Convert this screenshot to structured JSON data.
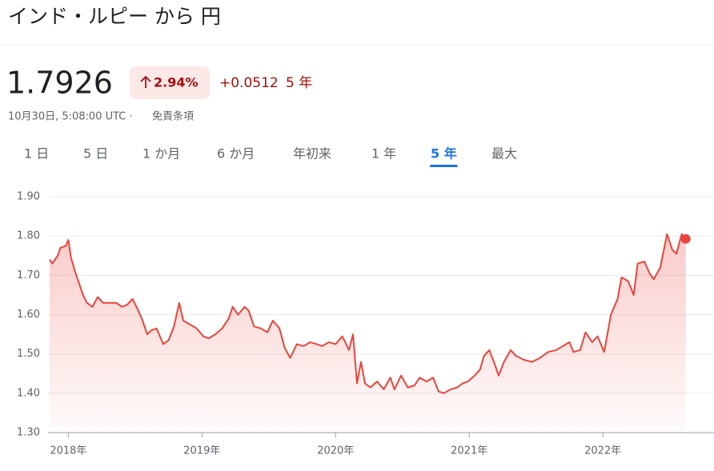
{
  "header": {
    "title": "インド・ルピー から 円"
  },
  "quote": {
    "price": "1.7926",
    "change_percent": "2.94%",
    "change": "+0.0512",
    "period": "5 年",
    "timestamp": "10月30日, 5:08:00 UTC ·",
    "disclaimer": "免責条項"
  },
  "tabs": {
    "items": [
      "1 日",
      "5 日",
      "1 か月",
      "6 か月",
      "年初来",
      "1 年",
      "5 年",
      "最大"
    ],
    "selected": 6
  },
  "chart_data": {
    "type": "line",
    "x": [
      2017.86,
      2017.88,
      2017.92,
      2017.94,
      2017.98,
      2018.0,
      2018.02,
      2018.05,
      2018.08,
      2018.11,
      2018.14,
      2018.18,
      2018.22,
      2018.26,
      2018.31,
      2018.36,
      2018.4,
      2018.44,
      2018.48,
      2018.51,
      2018.55,
      2018.59,
      2018.62,
      2018.66,
      2018.71,
      2018.75,
      2018.79,
      2018.83,
      2018.86,
      2018.91,
      2018.96,
      2019.01,
      2019.05,
      2019.1,
      2019.15,
      2019.2,
      2019.23,
      2019.27,
      2019.32,
      2019.35,
      2019.39,
      2019.44,
      2019.49,
      2019.53,
      2019.58,
      2019.62,
      2019.66,
      2019.71,
      2019.76,
      2019.81,
      2019.86,
      2019.9,
      2019.95,
      2020.0,
      2020.05,
      2020.1,
      2020.13,
      2020.16,
      2020.19,
      2020.22,
      2020.26,
      2020.31,
      2020.36,
      2020.41,
      2020.44,
      2020.49,
      2020.54,
      2020.59,
      2020.63,
      2020.68,
      2020.73,
      2020.77,
      2020.81,
      2020.86,
      2020.91,
      2020.95,
      2020.99,
      2021.04,
      2021.08,
      2021.11,
      2021.15,
      2021.19,
      2021.22,
      2021.26,
      2021.31,
      2021.35,
      2021.41,
      2021.47,
      2021.53,
      2021.59,
      2021.65,
      2021.7,
      2021.75,
      2021.78,
      2021.83,
      2021.87,
      2021.92,
      2021.96,
      2022.01,
      2022.06,
      2022.11,
      2022.14,
      2022.19,
      2022.23,
      2022.26,
      2022.31,
      2022.35,
      2022.38,
      2022.43,
      2022.48,
      2022.52,
      2022.55,
      2022.59,
      2022.62
    ],
    "series": [
      {
        "color": "#e8453c",
        "values": [
          1.74,
          1.73,
          1.75,
          1.77,
          1.775,
          1.79,
          1.745,
          1.71,
          1.68,
          1.65,
          1.63,
          1.62,
          1.645,
          1.63,
          1.63,
          1.63,
          1.62,
          1.625,
          1.64,
          1.62,
          1.59,
          1.55,
          1.56,
          1.565,
          1.525,
          1.535,
          1.57,
          1.63,
          1.585,
          1.575,
          1.565,
          1.545,
          1.54,
          1.55,
          1.565,
          1.59,
          1.62,
          1.6,
          1.62,
          1.61,
          1.57,
          1.565,
          1.555,
          1.585,
          1.565,
          1.515,
          1.49,
          1.525,
          1.52,
          1.53,
          1.525,
          1.52,
          1.53,
          1.525,
          1.545,
          1.51,
          1.55,
          1.425,
          1.48,
          1.425,
          1.415,
          1.43,
          1.41,
          1.44,
          1.41,
          1.445,
          1.415,
          1.42,
          1.44,
          1.43,
          1.44,
          1.405,
          1.4,
          1.41,
          1.415,
          1.425,
          1.43,
          1.445,
          1.46,
          1.495,
          1.51,
          1.475,
          1.445,
          1.48,
          1.51,
          1.495,
          1.485,
          1.48,
          1.49,
          1.505,
          1.51,
          1.52,
          1.53,
          1.505,
          1.51,
          1.555,
          1.53,
          1.545,
          1.505,
          1.6,
          1.64,
          1.695,
          1.685,
          1.65,
          1.73,
          1.735,
          1.705,
          1.69,
          1.72,
          1.805,
          1.765,
          1.755,
          1.805,
          1.7926
        ]
      }
    ],
    "xlim": [
      2017.86,
      2022.64
    ],
    "xticks": [
      {
        "value": 2018,
        "label": "2018年"
      },
      {
        "value": 2019,
        "label": "2019年"
      },
      {
        "value": 2020,
        "label": "2020年"
      },
      {
        "value": 2021,
        "label": "2021年"
      },
      {
        "value": 2022,
        "label": "2022年"
      }
    ],
    "ylim": [
      1.3,
      1.9
    ],
    "yticks": [
      {
        "value": 1.3,
        "label": "1.30"
      },
      {
        "value": 1.4,
        "label": "1.40"
      },
      {
        "value": 1.5,
        "label": "1.50"
      },
      {
        "value": 1.6,
        "label": "1.60"
      },
      {
        "value": 1.7,
        "label": "1.70"
      },
      {
        "value": 1.8,
        "label": "1.80"
      },
      {
        "value": 1.9,
        "label": "1.90"
      }
    ],
    "grid": true
  }
}
